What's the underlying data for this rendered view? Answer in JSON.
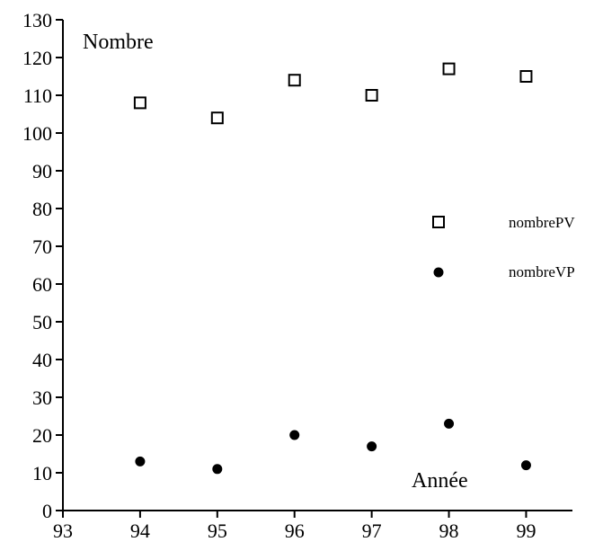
{
  "chart_data": {
    "type": "scatter",
    "title": "",
    "xlabel": "Année",
    "ylabel": "Nombre",
    "xlim": [
      93,
      99.6
    ],
    "ylim": [
      0,
      130
    ],
    "xticks": [
      93,
      94,
      95,
      96,
      97,
      98,
      99
    ],
    "yticks": [
      0,
      10,
      20,
      30,
      40,
      50,
      60,
      70,
      80,
      90,
      100,
      110,
      120,
      130
    ],
    "grid": false,
    "legend_position": "right",
    "series": [
      {
        "name": "nombrePV",
        "marker": "open-square",
        "color": "#000000",
        "x": [
          94,
          95,
          96,
          97,
          98,
          99
        ],
        "y": [
          108,
          104,
          114,
          110,
          117,
          115
        ]
      },
      {
        "name": "nombreVP",
        "marker": "filled-circle",
        "color": "#000000",
        "x": [
          94,
          95,
          96,
          97,
          98,
          99
        ],
        "y": [
          13,
          11,
          20,
          17,
          23,
          12
        ]
      }
    ]
  }
}
